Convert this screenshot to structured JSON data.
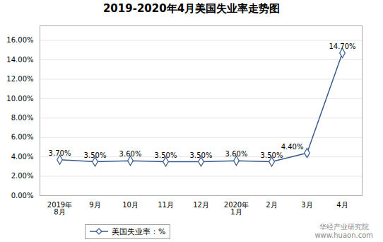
{
  "chart_data": {
    "type": "line",
    "title": "2019-2020年4月美国失业率走势图",
    "categories": [
      "2019年\n8月",
      "9月",
      "10月",
      "11月",
      "12月",
      "2020年\n1月",
      "2月",
      "3月",
      "4月"
    ],
    "series": [
      {
        "name": "美国失业率：%",
        "color": "#3A5A8C",
        "marker": "diamond",
        "values": [
          3.7,
          3.5,
          3.6,
          3.5,
          3.5,
          3.6,
          3.5,
          4.4,
          14.7
        ],
        "value_labels": [
          "3.70%",
          "3.50%",
          "3.60%",
          "3.50%",
          "3.50%",
          "3.60%",
          "3.50%",
          "4.40%",
          "14.70%"
        ]
      }
    ],
    "ylim": [
      0,
      17.5
    ],
    "yticks": [
      {
        "value": 0,
        "label": "0.00%"
      },
      {
        "value": 2,
        "label": "2.00%"
      },
      {
        "value": 4,
        "label": "4.00%"
      },
      {
        "value": 6,
        "label": "6.00%"
      },
      {
        "value": 8,
        "label": "8.00%"
      },
      {
        "value": 10,
        "label": "10.00%"
      },
      {
        "value": 12,
        "label": "12.00%"
      },
      {
        "value": 14,
        "label": "14.00%"
      },
      {
        "value": 16,
        "label": "16.00%"
      }
    ],
    "grid": true,
    "data_labels": true,
    "legend": "bottom",
    "annotations": [
      "华经产业研究院",
      "www.huaon.com"
    ]
  }
}
